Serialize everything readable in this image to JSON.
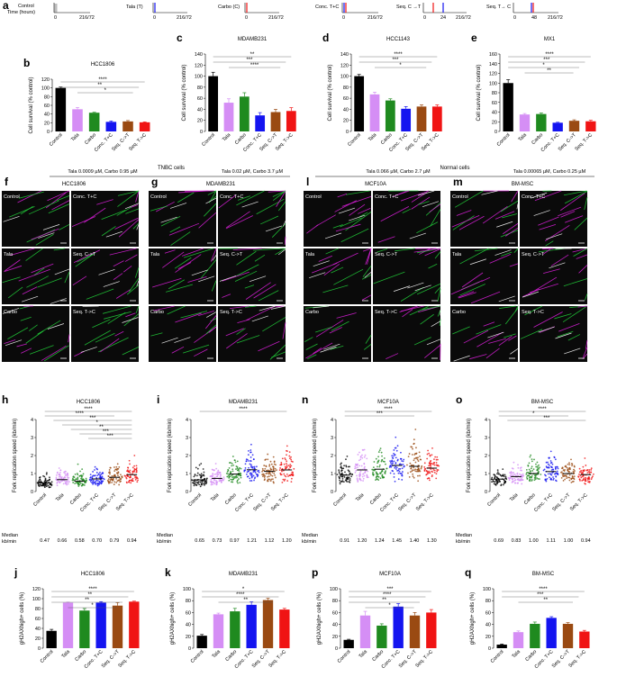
{
  "colors": {
    "Control": "#000000",
    "Tala": "#d58ef5",
    "Carbo": "#1f8a1f",
    "Conc": "#1414f0",
    "SeqCT": "#9a4a12",
    "SeqTC": "#f01414",
    "micro_green": "#22d23a",
    "micro_magenta": "#e020e0"
  },
  "groups": [
    "Control",
    "Tala",
    "Carbo",
    "Conc. T+C",
    "Seq. C->T",
    "Seq. T->C"
  ],
  "timelines": {
    "label": "a",
    "axis_title_lines": [
      "Control",
      "Time (hours)"
    ],
    "items": [
      {
        "title": "",
        "ticks": [
          "0",
          "216/72"
        ]
      },
      {
        "title": "Tala (T)",
        "ticks": [
          "0",
          "216/72"
        ]
      },
      {
        "title": "Carbo (C)",
        "ticks": [
          "0",
          "216/72"
        ]
      },
      {
        "title": "Conc. T+C",
        "ticks": [
          "0",
          "216/72"
        ]
      },
      {
        "title": "Seq. C →T",
        "ticks": [
          "0",
          "24",
          "216/72"
        ]
      },
      {
        "title": "Seq. T→ C",
        "ticks": [
          "0",
          "48",
          "216/72"
        ]
      }
    ]
  },
  "survival_panels": [
    {
      "label": "b",
      "title": "HCC1806",
      "ylabel": "Cell survival (% control)",
      "note": "Tala 0.0009 µM, Carbo 0.95 µM",
      "stars": [
        "****",
        "**",
        "*"
      ]
    },
    {
      "label": "c",
      "title": "MDAMB231",
      "ylabel": "Cell survival (% control)",
      "note": "Tala 0.02 µM, Carbo 3.7 µM",
      "stars": [
        "**",
        "***",
        "****"
      ]
    },
    {
      "label": "d",
      "title": "HCC1143",
      "ylabel": "Cell survival (% control)",
      "note": "Tala 0.066 µM, Carbo 2.7 µM",
      "stars": [
        "****",
        "***",
        "*"
      ]
    },
    {
      "label": "e",
      "title": "MX1",
      "ylabel": "Cell survival (% control)",
      "note": "Tala 0.00065 µM, Carbo 0.25 µM",
      "stars": [
        "****",
        "***",
        "*",
        "**"
      ]
    }
  ],
  "micro_panels": {
    "group_headers": [
      "TNBC cells",
      "Normal cells"
    ],
    "panels": [
      {
        "label": "f",
        "title": "HCC1806"
      },
      {
        "label": "g",
        "title": "MDAMB231"
      },
      {
        "label": "l",
        "title": "MCF10A"
      },
      {
        "label": "m",
        "title": "BM-MSC"
      }
    ],
    "tile_labels": [
      "Control",
      "Conc. T+C",
      "Tala",
      "Seq. C->T",
      "Carbo",
      "Seq. T->C"
    ]
  },
  "fork_panels": [
    {
      "label": "h",
      "title": "HCC1806",
      "ylabel": "Fork replication speed (kb/min)",
      "stars": [
        "****",
        "****",
        "***",
        "*",
        "**",
        "***",
        "***"
      ]
    },
    {
      "label": "i",
      "title": "MDAMB231",
      "ylabel": "Fork replication speed (kb/min)",
      "stars": [
        "****"
      ]
    },
    {
      "label": "n",
      "title": "MCF10A",
      "ylabel": "Fork replication speed (kb/min)",
      "stars": [
        "****",
        "***"
      ]
    },
    {
      "label": "o",
      "title": "BM-MSC",
      "ylabel": "Fork replication speed (kb/min)",
      "stars": [
        "****",
        "*",
        "***"
      ]
    }
  ],
  "median_label_lines": [
    "Median",
    "kb/min"
  ],
  "gh2ax_panels": [
    {
      "label": "j",
      "title": "HCC1806",
      "ylabel": "gH2AXhigh+ cells (%)",
      "stars": [
        "****",
        "**",
        "**",
        "*"
      ]
    },
    {
      "label": "k",
      "title": "MDAMB231",
      "ylabel": "gH2AXhigh+ cells (%)",
      "stars": [
        "*",
        "****",
        "**"
      ]
    },
    {
      "label": "p",
      "title": "MCF10A",
      "ylabel": "gH2AXhigh+ cells (%)",
      "stars": [
        "***",
        "****",
        "**",
        "*"
      ]
    },
    {
      "label": "q",
      "title": "BM-MSC",
      "ylabel": "gH2AXhigh+ cells (%)",
      "stars": [
        "****",
        "***",
        "**"
      ]
    }
  ],
  "chart_data": [
    {
      "type": "bar",
      "panel": "b",
      "title": "HCC1806",
      "ylabel": "Cell survival (% control)",
      "categories": [
        "Control",
        "Tala",
        "Carbo",
        "Conc. T+C",
        "Seq. C->T",
        "Seq. T->C"
      ],
      "values": [
        100,
        51,
        43,
        22,
        23,
        21
      ],
      "errors": [
        2,
        4,
        1,
        2,
        2,
        1
      ],
      "ylim": [
        0,
        120
      ],
      "yticks": [
        0,
        20,
        40,
        60,
        80,
        100,
        120
      ]
    },
    {
      "type": "bar",
      "panel": "c",
      "title": "MDAMB231",
      "ylabel": "Cell survival (% control)",
      "categories": [
        "Control",
        "Tala",
        "Carbo",
        "Conc. T+C",
        "Seq. C->T",
        "Seq. T->C"
      ],
      "values": [
        100,
        52,
        63,
        29,
        35,
        37
      ],
      "errors": [
        7,
        7,
        7,
        5,
        5,
        6
      ],
      "ylim": [
        0,
        140
      ],
      "yticks": [
        0,
        20,
        40,
        60,
        80,
        100,
        120,
        140
      ]
    },
    {
      "type": "bar",
      "panel": "d",
      "title": "HCC1143",
      "ylabel": "Cell survival (% control)",
      "categories": [
        "Control",
        "Tala",
        "Carbo",
        "Conc. T+C",
        "Seq. C->T",
        "Seq. T->C"
      ],
      "values": [
        100,
        67,
        56,
        41,
        45,
        45
      ],
      "errors": [
        3,
        4,
        3,
        4,
        3,
        3
      ],
      "ylim": [
        0,
        140
      ],
      "yticks": [
        0,
        20,
        40,
        60,
        80,
        100,
        120,
        140
      ]
    },
    {
      "type": "bar",
      "panel": "e",
      "title": "MX1",
      "ylabel": "Cell survival (% control)",
      "categories": [
        "Control",
        "Tala",
        "Carbo",
        "Conc. T+C",
        "Seq. C->T",
        "Seq. T->C"
      ],
      "values": [
        100,
        35,
        36,
        18,
        22,
        21
      ],
      "errors": [
        7,
        2,
        2,
        1,
        2,
        2
      ],
      "ylim": [
        0,
        160
      ],
      "yticks": [
        0,
        20,
        40,
        60,
        80,
        100,
        120,
        140,
        160
      ]
    },
    {
      "type": "scatter",
      "panel": "h",
      "title": "HCC1806",
      "ylabel": "Fork replication speed (kb/min)",
      "categories": [
        "Control",
        "Tala",
        "Carbo",
        "Conc. T+C",
        "Seq. C->T",
        "Seq. T->C"
      ],
      "medians": [
        0.47,
        0.66,
        0.58,
        0.7,
        0.79,
        0.94
      ],
      "ylim": [
        0,
        4
      ],
      "yticks": [
        0,
        1,
        2,
        3,
        4
      ]
    },
    {
      "type": "scatter",
      "panel": "i",
      "title": "MDAMB231",
      "ylabel": "Fork replication speed (kb/min)",
      "categories": [
        "Control",
        "Tala",
        "Carbo",
        "Conc. T+C",
        "Seq. C->T",
        "Seq. T->C"
      ],
      "medians": [
        0.65,
        0.73,
        0.97,
        1.21,
        1.12,
        1.2
      ],
      "ylim": [
        0,
        4
      ],
      "yticks": [
        0,
        1,
        2,
        3,
        4
      ]
    },
    {
      "type": "scatter",
      "panel": "n",
      "title": "MCF10A",
      "ylabel": "Fork replication speed (kb/min)",
      "categories": [
        "Control",
        "Tala",
        "Carbo",
        "Conc. T+C",
        "Seq. C->T",
        "Seq. T->C"
      ],
      "medians": [
        0.91,
        1.2,
        1.24,
        1.45,
        1.4,
        1.3
      ],
      "ylim": [
        0,
        4
      ],
      "yticks": [
        0,
        1,
        2,
        3,
        4
      ]
    },
    {
      "type": "scatter",
      "panel": "o",
      "title": "BM-MSC",
      "ylabel": "Fork replication speed (kb/min)",
      "categories": [
        "Control",
        "Tala",
        "Carbo",
        "Conc. T+C",
        "Seq. C->T",
        "Seq. T->C"
      ],
      "medians": [
        0.69,
        0.83,
        1.0,
        1.11,
        1.0,
        0.94
      ],
      "ylim": [
        0,
        4
      ],
      "yticks": [
        0,
        1,
        2,
        3,
        4
      ]
    },
    {
      "type": "bar",
      "panel": "j",
      "title": "HCC1806",
      "ylabel": "gH2AXhigh+ cells (%)",
      "categories": [
        "Control",
        "Tala",
        "Carbo",
        "Conc. T+C",
        "Seq. C->T",
        "Seq. T->C"
      ],
      "values": [
        35,
        92,
        76,
        92,
        86,
        94
      ],
      "errors": [
        3,
        1,
        4,
        2,
        6,
        1
      ],
      "ylim": [
        0,
        120
      ],
      "yticks": [
        0,
        20,
        40,
        60,
        80,
        100,
        120
      ]
    },
    {
      "type": "bar",
      "panel": "k",
      "title": "MDAMB231",
      "ylabel": "gH2AXhigh+ cells (%)",
      "categories": [
        "Control",
        "Tala",
        "Carbo",
        "Conc. T+C",
        "Seq. C->T",
        "Seq. T->C"
      ],
      "values": [
        21,
        57,
        62,
        73,
        81,
        65
      ],
      "errors": [
        2,
        2,
        5,
        5,
        3,
        2
      ],
      "ylim": [
        0,
        100
      ],
      "yticks": [
        0,
        20,
        40,
        60,
        80,
        100
      ]
    },
    {
      "type": "bar",
      "panel": "p",
      "title": "MCF10A",
      "ylabel": "gH2AXhigh+ cells (%)",
      "categories": [
        "Control",
        "Tala",
        "Carbo",
        "Conc. T+C",
        "Seq. C->T",
        "Seq. T->C"
      ],
      "values": [
        14,
        55,
        38,
        70,
        55,
        60
      ],
      "errors": [
        1,
        7,
        3,
        5,
        5,
        5
      ],
      "ylim": [
        0,
        100
      ],
      "yticks": [
        0,
        20,
        40,
        60,
        80,
        100
      ]
    },
    {
      "type": "bar",
      "panel": "q",
      "title": "BM-MSC",
      "ylabel": "gH2AXhigh+ cells (%)",
      "categories": [
        "Control",
        "Tala",
        "Carbo",
        "Conc. T+C",
        "Seq. C->T",
        "Seq. T->C"
      ],
      "values": [
        6,
        27,
        41,
        51,
        41,
        28
      ],
      "errors": [
        1,
        2,
        3,
        2,
        2,
        2
      ],
      "ylim": [
        0,
        100
      ],
      "yticks": [
        0,
        20,
        40,
        60,
        80,
        100
      ]
    }
  ]
}
